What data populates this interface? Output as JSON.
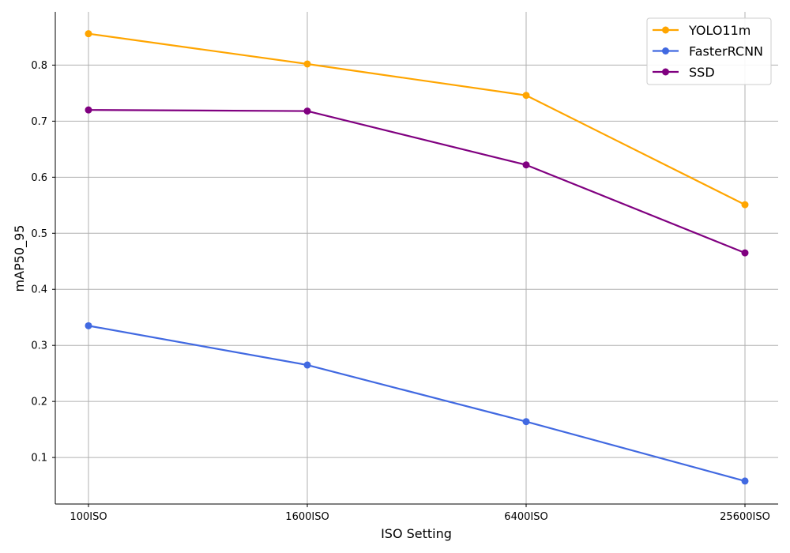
{
  "chart_data": {
    "type": "line",
    "title": "",
    "xlabel": "ISO Setting",
    "ylabel": "mAP50_95",
    "categories": [
      "100ISO",
      "1600ISO",
      "6400ISO",
      "25600ISO"
    ],
    "ylim": [
      0.017,
      0.895
    ],
    "yticks": [
      0.1,
      0.2,
      0.3,
      0.4,
      0.5,
      0.6,
      0.7,
      0.8
    ],
    "ytick_labels": [
      "0.1",
      "0.2",
      "0.3",
      "0.4",
      "0.5",
      "0.6",
      "0.7",
      "0.8"
    ],
    "grid": true,
    "legend_position": "top-right",
    "series": [
      {
        "name": "YOLO11m",
        "color": "#FFA500",
        "values": [
          0.856,
          0.802,
          0.746,
          0.551
        ]
      },
      {
        "name": "FasterRCNN",
        "color": "#4169E1",
        "values": [
          0.335,
          0.265,
          0.164,
          0.058
        ]
      },
      {
        "name": "SSD",
        "color": "#800080",
        "values": [
          0.72,
          0.718,
          0.622,
          0.465
        ]
      }
    ]
  }
}
